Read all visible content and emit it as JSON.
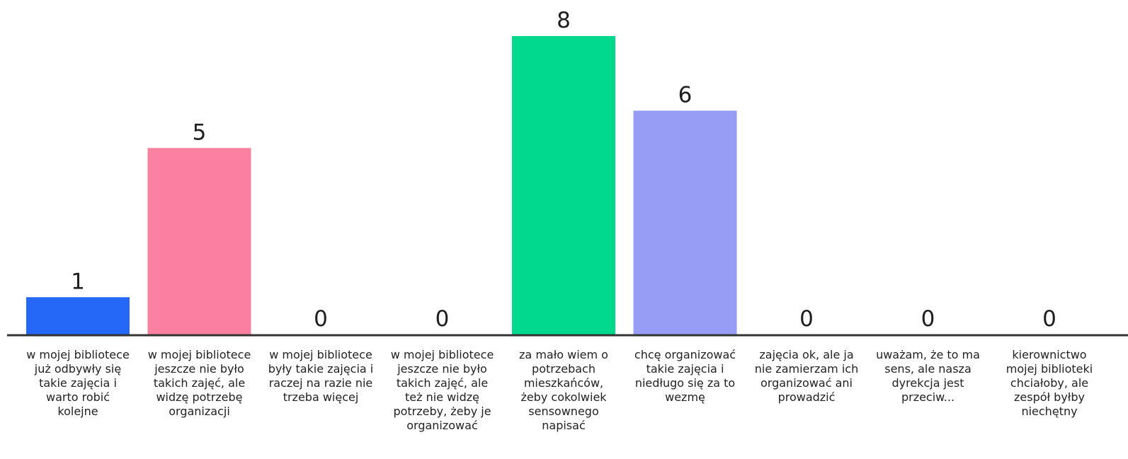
{
  "chart_data": {
    "type": "bar",
    "categories": [
      "w mojej bibliotece już odbywły się takie zajęcia i warto robić kolejne",
      "w mojej bibliotece jeszcze nie było takich zajęć, ale widzę potrzebę organizacji",
      "w mojej bibliotece były takie zajęcia i raczej na razie nie trzeba więcej",
      "w mojej bibliotece jeszcze nie było takich zajęć, ale też nie widzę potrzeby, żeby je organizować",
      "za mało wiem o potrzebach mieszkańców, żeby cokolwiek sensownego napisać",
      "chcę organizować takie zajęcia i niedługo się za to wezmę",
      "zajęcia ok, ale ja nie zamierzam ich organizować ani prowadzić",
      "uważam, że to ma sens, ale nasza dyrekcja jest przeciw...",
      "kierownictwo mojej biblioteki chciałoby, ale zespół byłby niechętny"
    ],
    "values": [
      1,
      5,
      0,
      0,
      8,
      6,
      0,
      0,
      0
    ],
    "colors": [
      "#2567f6",
      "#f9819f",
      "#cccccc",
      "#cccccc",
      "#00d98e",
      "#979cf4",
      "#cccccc",
      "#cccccc",
      "#cccccc"
    ],
    "title": "",
    "xlabel": "",
    "ylabel": "",
    "ylim": [
      0,
      8
    ],
    "grid": false,
    "legend": "none",
    "data_labels": true
  }
}
